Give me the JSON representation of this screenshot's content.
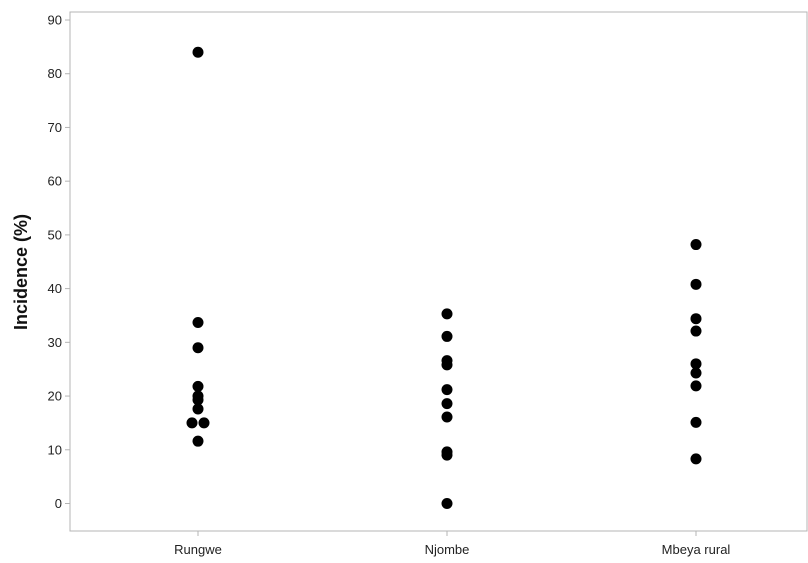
{
  "chart_data": {
    "type": "scatter",
    "title": "",
    "xlabel": "",
    "ylabel": "Incidence (%)",
    "categories": [
      "Rungwe",
      "Njombe",
      "Mbeya rural"
    ],
    "ylim": [
      -5,
      92
    ],
    "yticks": [
      0,
      10,
      20,
      30,
      40,
      50,
      60,
      70,
      80,
      90
    ],
    "grid": false,
    "legend": "none",
    "series": [
      {
        "category": "Rungwe",
        "points": [
          {
            "jitter": 0,
            "y": 84
          },
          {
            "jitter": 0,
            "y": 33.7
          },
          {
            "jitter": 0,
            "y": 29
          },
          {
            "jitter": 0,
            "y": 21.8
          },
          {
            "jitter": 0,
            "y": 20
          },
          {
            "jitter": 0,
            "y": 19.3
          },
          {
            "jitter": 0,
            "y": 17.6
          },
          {
            "jitter": -1,
            "y": 15
          },
          {
            "jitter": 1,
            "y": 15
          },
          {
            "jitter": 0,
            "y": 11.6
          }
        ]
      },
      {
        "category": "Njombe",
        "points": [
          {
            "jitter": 0,
            "y": 35.3
          },
          {
            "jitter": 0,
            "y": 31.1
          },
          {
            "jitter": 0,
            "y": 26.6
          },
          {
            "jitter": 0,
            "y": 25.8
          },
          {
            "jitter": 0,
            "y": 21.2
          },
          {
            "jitter": 0,
            "y": 18.6
          },
          {
            "jitter": 0,
            "y": 16.1
          },
          {
            "jitter": 0,
            "y": 9.6
          },
          {
            "jitter": 0,
            "y": 9
          },
          {
            "jitter": 0,
            "y": 0
          }
        ]
      },
      {
        "category": "Mbeya rural",
        "points": [
          {
            "jitter": 0,
            "y": 48.2
          },
          {
            "jitter": 0,
            "y": 40.8
          },
          {
            "jitter": 0,
            "y": 34.4
          },
          {
            "jitter": 0,
            "y": 32.1
          },
          {
            "jitter": 0,
            "y": 26
          },
          {
            "jitter": 0,
            "y": 24.3
          },
          {
            "jitter": 0,
            "y": 21.9
          },
          {
            "jitter": 0,
            "y": 15.1
          },
          {
            "jitter": 0,
            "y": 8.3
          }
        ]
      }
    ],
    "colors": {
      "marker": "#000000",
      "frame": "#b4b4b4",
      "text": "#222222"
    }
  }
}
